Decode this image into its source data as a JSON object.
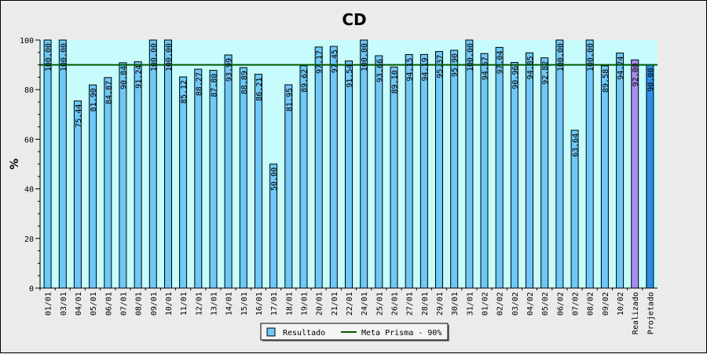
{
  "chart_data": {
    "type": "bar",
    "title": "CD",
    "ylabel": "%",
    "xlabel": "",
    "ylim": [
      0,
      100
    ],
    "yticks": [
      0,
      20,
      40,
      60,
      80,
      100
    ],
    "grid": false,
    "plot_background": "#c6fcfc",
    "categories": [
      "01/01",
      "03/01",
      "04/01",
      "05/01",
      "06/01",
      "07/01",
      "08/01",
      "09/01",
      "10/01",
      "11/01",
      "12/01",
      "13/01",
      "14/01",
      "15/01",
      "16/01",
      "17/01",
      "18/01",
      "19/01",
      "20/01",
      "21/01",
      "22/01",
      "24/01",
      "25/01",
      "26/01",
      "27/01",
      "28/01",
      "29/01",
      "30/01",
      "31/01",
      "01/02",
      "02/02",
      "03/02",
      "04/02",
      "05/02",
      "06/02",
      "07/02",
      "08/02",
      "09/02",
      "10/02",
      "Realizado",
      "Projetado"
    ],
    "values": [
      100.0,
      100.0,
      75.44,
      81.9,
      84.87,
      90.84,
      91.24,
      100.0,
      100.0,
      85.12,
      88.27,
      87.8,
      93.99,
      88.89,
      86.21,
      50.0,
      81.95,
      89.62,
      97.17,
      97.45,
      91.54,
      100.0,
      93.66,
      89.1,
      94.15,
      94.19,
      95.37,
      95.9,
      100.0,
      94.57,
      97.04,
      90.96,
      94.85,
      92.82,
      100.0,
      63.64,
      100.0,
      89.58,
      94.74,
      92.0,
      90.0
    ],
    "value_labels": [
      "100.00",
      "100.00",
      "75.44",
      "81.90",
      "84.87",
      "90.84",
      "91.24",
      "100.00",
      "100.00",
      "85.12",
      "88.27",
      "87.80",
      "93.99",
      "88.89",
      "86.21",
      "50.00",
      "81.95",
      "89.62",
      "97.17",
      "97.45",
      "91.54",
      "100.00",
      "93.66",
      "89.10",
      "94.15",
      "94.19",
      "95.37",
      "95.90",
      "100.00",
      "94.57",
      "97.04",
      "90.96",
      "94.85",
      "92.82",
      "100.00",
      "63.64",
      "100.00",
      "89.58",
      "94.74",
      "92.00",
      "90.00"
    ],
    "bar_colors": {
      "default": "#6ec8f8",
      "Realizado": "#a88cf0",
      "Projetado": "#2a8ee6"
    },
    "series": [
      {
        "name": "Resultado",
        "kind": "bar",
        "color": "#6ec8f8"
      },
      {
        "name": "Meta Prisma - 90%",
        "kind": "line",
        "value": 90,
        "color": "#005a00"
      }
    ],
    "legend_position": "bottom-center"
  }
}
